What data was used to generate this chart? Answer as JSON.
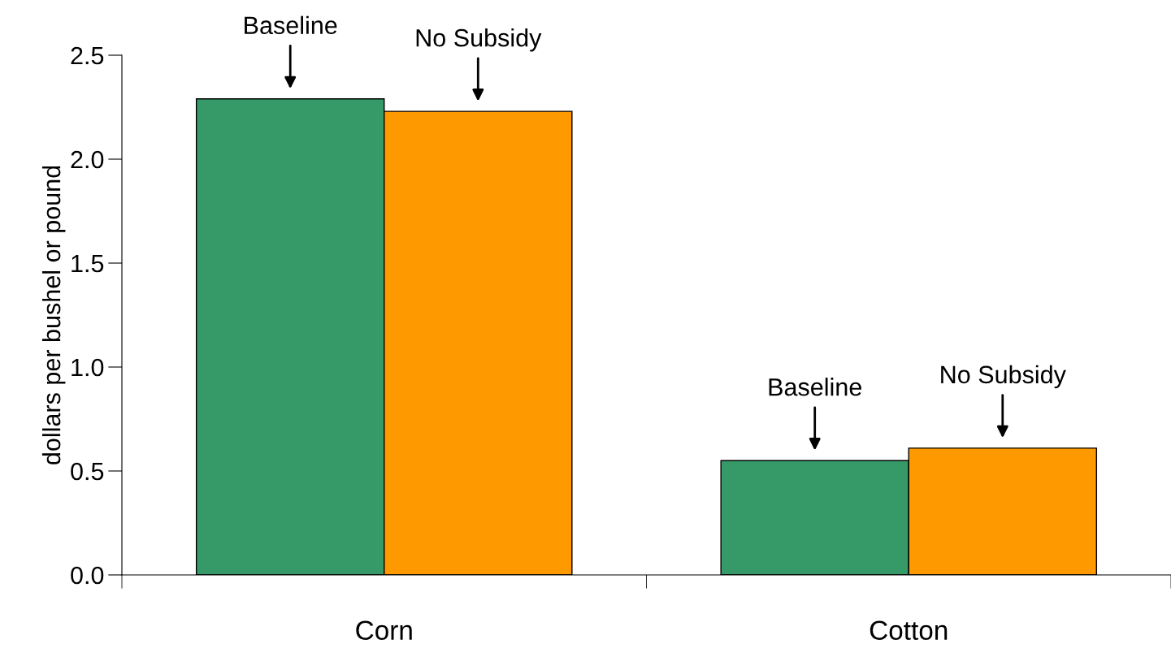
{
  "chart_data": {
    "type": "bar",
    "ylabel": "dollars per bushel or pound",
    "categories": [
      "Corn",
      "Cotton"
    ],
    "series": [
      {
        "name": "Baseline",
        "color": "#359a68",
        "values": [
          2.29,
          0.55
        ]
      },
      {
        "name": "No Subsidy",
        "color": "#ff9900",
        "values": [
          2.23,
          0.61
        ]
      }
    ],
    "ylim": [
      0,
      2.5
    ],
    "yticks": [
      {
        "value": 0,
        "label": "0.0"
      },
      {
        "value": 0.5,
        "label": "0.5"
      },
      {
        "value": 1.0,
        "label": "1.0"
      },
      {
        "value": 1.5,
        "label": "1.5"
      },
      {
        "value": 2.0,
        "label": "2.0"
      },
      {
        "value": 2.5,
        "label": "2.5"
      }
    ],
    "grid": false,
    "legend": false
  }
}
